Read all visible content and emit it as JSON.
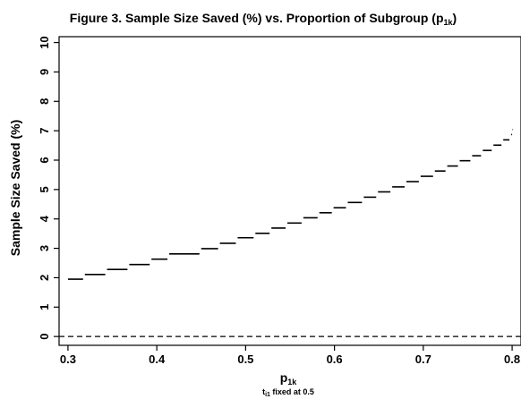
{
  "chart_data": {
    "type": "line",
    "title": "Figure 3. Sample Size Saved (%) vs. Proportion of Subgroup (p",
    "title_sub": "1k",
    "title_close": ")",
    "xlabel": "p",
    "xlabel_sub": "1k",
    "note_prefix": "t",
    "note_sub": "i1",
    "note_rest": " fixed at 0.5",
    "ylabel": "Sample Size Saved (%)",
    "xlim": [
      0.29,
      0.81
    ],
    "ylim": [
      -0.3,
      10.2
    ],
    "x_ticks": [
      "0.3",
      "0.4",
      "0.5",
      "0.6",
      "0.7",
      "0.8"
    ],
    "y_ticks": [
      "0",
      "1",
      "2",
      "3",
      "4",
      "5",
      "6",
      "7",
      "8",
      "9",
      "10"
    ],
    "reference_line": {
      "y": 0,
      "style": "dashed"
    },
    "series": [
      {
        "style": "step",
        "points": [
          {
            "x0": 0.3,
            "x1": 0.317,
            "y": 1.95
          },
          {
            "x0": 0.319,
            "x1": 0.342,
            "y": 2.11
          },
          {
            "x0": 0.344,
            "x1": 0.367,
            "y": 2.28
          },
          {
            "x0": 0.369,
            "x1": 0.392,
            "y": 2.45
          },
          {
            "x0": 0.394,
            "x1": 0.412,
            "y": 2.63
          },
          {
            "x0": 0.414,
            "x1": 0.448,
            "y": 2.81
          },
          {
            "x0": 0.45,
            "x1": 0.469,
            "y": 2.99
          },
          {
            "x0": 0.471,
            "x1": 0.489,
            "y": 3.17
          },
          {
            "x0": 0.491,
            "x1": 0.509,
            "y": 3.36
          },
          {
            "x0": 0.511,
            "x1": 0.527,
            "y": 3.51
          },
          {
            "x0": 0.529,
            "x1": 0.545,
            "y": 3.69
          },
          {
            "x0": 0.547,
            "x1": 0.563,
            "y": 3.86
          },
          {
            "x0": 0.565,
            "x1": 0.581,
            "y": 4.04
          },
          {
            "x0": 0.583,
            "x1": 0.597,
            "y": 4.21
          },
          {
            "x0": 0.599,
            "x1": 0.613,
            "y": 4.38
          },
          {
            "x0": 0.615,
            "x1": 0.631,
            "y": 4.56
          },
          {
            "x0": 0.633,
            "x1": 0.647,
            "y": 4.74
          },
          {
            "x0": 0.649,
            "x1": 0.663,
            "y": 4.92
          },
          {
            "x0": 0.665,
            "x1": 0.679,
            "y": 5.09
          },
          {
            "x0": 0.681,
            "x1": 0.695,
            "y": 5.27
          },
          {
            "x0": 0.697,
            "x1": 0.711,
            "y": 5.45
          },
          {
            "x0": 0.713,
            "x1": 0.725,
            "y": 5.63
          },
          {
            "x0": 0.727,
            "x1": 0.739,
            "y": 5.8
          },
          {
            "x0": 0.741,
            "x1": 0.753,
            "y": 5.98
          },
          {
            "x0": 0.755,
            "x1": 0.765,
            "y": 6.15
          },
          {
            "x0": 0.767,
            "x1": 0.777,
            "y": 6.33
          },
          {
            "x0": 0.779,
            "x1": 0.788,
            "y": 6.51
          },
          {
            "x0": 0.79,
            "x1": 0.797,
            "y": 6.69
          },
          {
            "x0": 0.799,
            "x1": 0.8,
            "y": 6.87
          },
          {
            "x0": 0.8005,
            "x1": 0.801,
            "y": 7.04
          }
        ]
      }
    ]
  }
}
